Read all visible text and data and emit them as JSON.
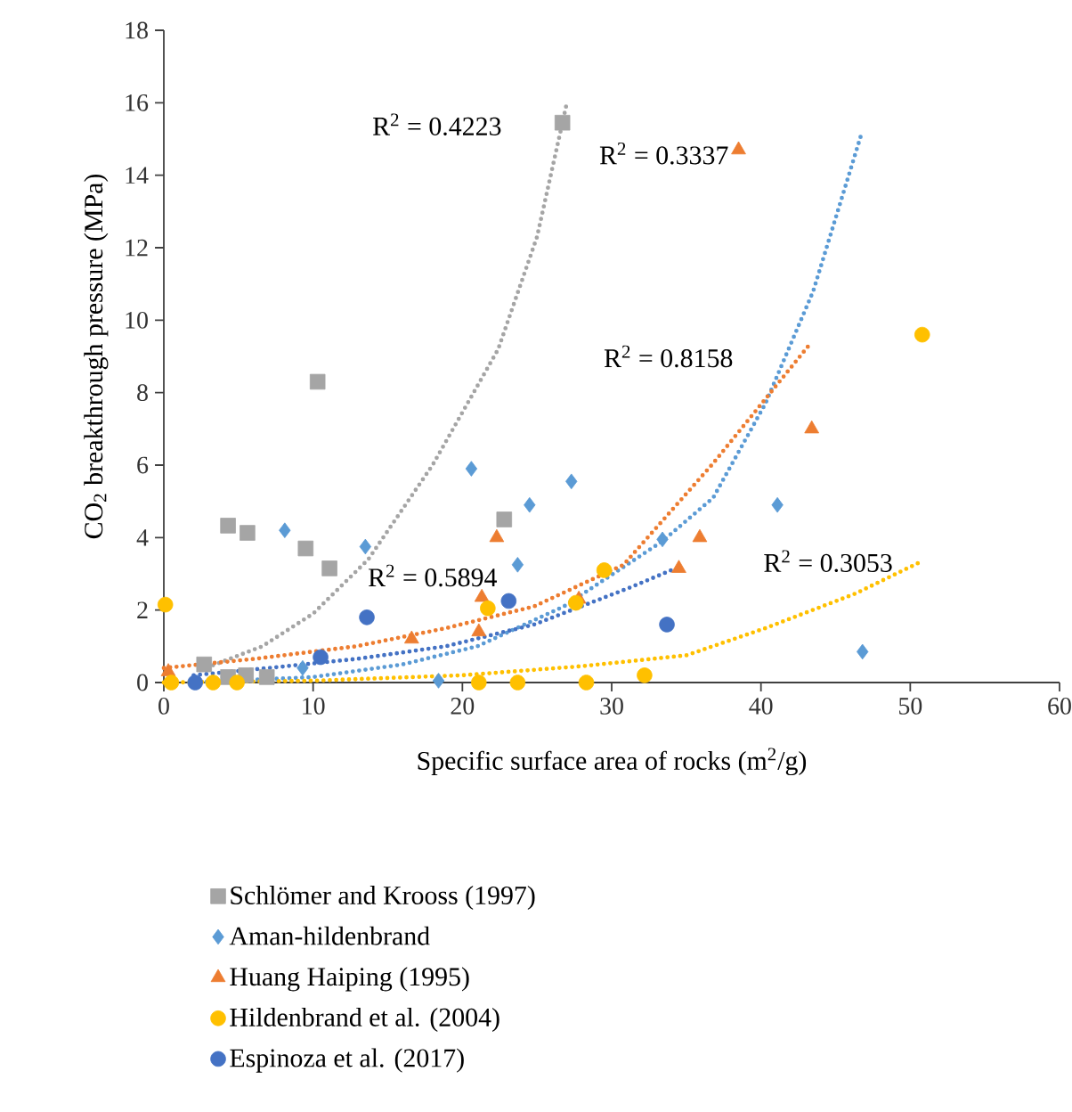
{
  "chart_data": {
    "type": "scatter",
    "xlabel": "Specific surface area of rocks (m$^{2}$/g)",
    "ylabel": "CO$_{2}$ breakthrough pressure (MPa)",
    "xlim": [
      0,
      60
    ],
    "ylim": [
      0,
      18
    ],
    "xticks": [
      0,
      10,
      20,
      30,
      40,
      50,
      60
    ],
    "yticks": [
      0,
      2,
      4,
      6,
      8,
      10,
      12,
      14,
      16,
      18
    ],
    "grid": false,
    "legend": "bottom",
    "series": [
      {
        "name": "Schlömer and Krooss (1997)",
        "color": "#a5a5a5",
        "marker": "square",
        "x": [
          2.7,
          4.3,
          5.5,
          6.9,
          4.3,
          5.6,
          10.3,
          9.5,
          11.1,
          22.8,
          26.7
        ],
        "values": [
          0.5,
          0.15,
          0.2,
          0.15,
          4.33,
          4.13,
          8.3,
          3.7,
          3.15,
          4.5,
          15.45
        ]
      },
      {
        "name": "Aman-hildenbrand",
        "color": "#5b9bd5",
        "marker": "diamond",
        "x": [
          8.1,
          13.5,
          20.6,
          24.5,
          27.3,
          23.7,
          33.4,
          41.1,
          46.8,
          18.4,
          9.3
        ],
        "values": [
          4.2,
          3.75,
          5.9,
          4.9,
          5.55,
          3.25,
          3.95,
          4.9,
          0.85,
          0.05,
          0.4
        ]
      },
      {
        "name": "Huang Haiping (1995)",
        "color": "#ed7d31",
        "marker": "triangle",
        "x": [
          0.3,
          16.6,
          21.1,
          21.3,
          22.3,
          27.8,
          34.5,
          35.9,
          43.4,
          38.5
        ],
        "values": [
          0.3,
          1.2,
          1.4,
          2.35,
          4.0,
          2.3,
          3.15,
          4.0,
          7.0,
          14.7
        ]
      },
      {
        "name": "Hildenbrand et al. (2004)",
        "color": "#ffc000",
        "marker": "circle",
        "x": [
          0.1,
          0.5,
          3.3,
          4.9,
          21.1,
          23.7,
          28.3,
          32.2,
          21.7,
          27.6,
          29.5,
          50.8
        ],
        "values": [
          2.15,
          0,
          0,
          0,
          0,
          0,
          0,
          0.2,
          2.05,
          2.2,
          3.1,
          9.6
        ]
      },
      {
        "name": "Espinoza et al. (2017)",
        "color": "#4472c4",
        "marker": "circle",
        "x": [
          2.1,
          10.5,
          13.6,
          23.1,
          33.7
        ],
        "values": [
          0.0,
          0.7,
          1.8,
          2.25,
          1.6
        ]
      },
      {
        "type": "line",
        "line_style": "dotted",
        "marker": "none",
        "color": "#a5a5a5",
        "x": [
          2.5,
          6.6,
          10,
          13.7,
          18,
          22.4,
          25,
          27
        ],
        "values": [
          0.35,
          1.0,
          1.9,
          3.4,
          6.0,
          9.2,
          12.3,
          16.0
        ]
      },
      {
        "type": "line",
        "line_style": "dotted",
        "marker": "none",
        "color": "#5b9bd5",
        "x": [
          2,
          10,
          16,
          21,
          26.8,
          33.4,
          36.8,
          40.3,
          43.5,
          46.7
        ],
        "values": [
          0.0,
          0.15,
          0.5,
          1.0,
          2.1,
          3.9,
          5.1,
          7.7,
          10.8,
          15.1
        ]
      },
      {
        "type": "line",
        "line_style": "dotted",
        "marker": "none",
        "color": "#ed7d31",
        "x": [
          0,
          6,
          12.9,
          18.9,
          24.8,
          30.8,
          36.8,
          43.2
        ],
        "values": [
          0.4,
          0.65,
          1.0,
          1.5,
          2.1,
          3.25,
          6.05,
          9.3
        ]
      },
      {
        "type": "line",
        "line_style": "dotted",
        "marker": "none",
        "color": "#ffc000",
        "x": [
          0,
          10,
          20,
          28,
          35,
          40.3,
          46.3,
          50.8
        ],
        "values": [
          0.0,
          0.05,
          0.2,
          0.45,
          0.75,
          1.5,
          2.45,
          3.35
        ]
      },
      {
        "type": "line",
        "line_style": "dotted",
        "marker": "none",
        "color": "#4472c4",
        "x": [
          2,
          7,
          12.9,
          18.9,
          24.8,
          31.1,
          34
        ],
        "values": [
          0.2,
          0.4,
          0.65,
          1.0,
          1.6,
          2.6,
          3.1
        ]
      }
    ],
    "annotations": [
      "R$^{2}$ = 0.4223",
      "R$^{2}$ = 0.3337",
      "R$^{2}$ = 0.8158",
      "R$^{2}$ = 0.5894",
      "R$^{2}$ = 0.3053"
    ]
  }
}
